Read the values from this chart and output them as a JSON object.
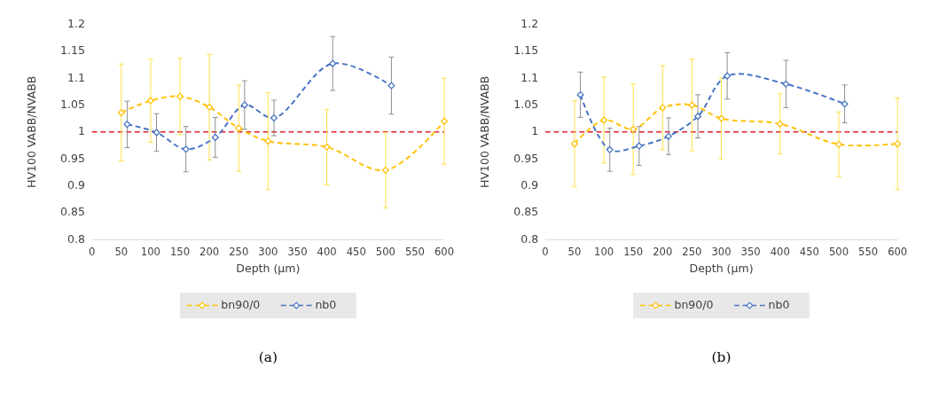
{
  "chart_data": [
    {
      "type": "line",
      "xlabel": "Depth (µm)",
      "ylabel": "HV100 VABB/NVABB",
      "xlim": [
        0,
        600
      ],
      "xticks": [
        0,
        50,
        100,
        150,
        200,
        250,
        300,
        350,
        400,
        450,
        500,
        550,
        600
      ],
      "ylim": [
        0.8,
        1.2
      ],
      "yticks": [
        0.8,
        0.85,
        0.9,
        0.95,
        1,
        1.05,
        1.1,
        1.15,
        1.2
      ],
      "grid": false,
      "legend": "bottom",
      "marker": "diamond",
      "line_style": "dashed",
      "annotations": [
        "(a)"
      ],
      "ref_lines": [
        {
          "axis": "y",
          "value": 1,
          "color": "#e0202a",
          "line_style": "dashed"
        }
      ],
      "series": [
        {
          "name": "bn90/0",
          "color": "#ffc000",
          "x": [
            50,
            100,
            150,
            200,
            250,
            300,
            400,
            500,
            600
          ],
          "values": [
            1.036,
            1.058,
            1.066,
            1.046,
            1.007,
            0.983,
            0.972,
            0.929,
            1.02
          ],
          "errors": [
            0.09,
            0.077,
            0.071,
            0.098,
            0.08,
            0.09,
            0.07,
            0.07,
            0.08
          ]
        },
        {
          "name": "nb0",
          "color": "#4472c4",
          "x": [
            60,
            110,
            160,
            210,
            260,
            310,
            410,
            510
          ],
          "values": [
            1.014,
            0.999,
            0.968,
            0.99,
            1.05,
            1.026,
            1.127,
            1.086
          ],
          "errors": [
            0.043,
            0.035,
            0.042,
            0.037,
            0.045,
            0.033,
            0.05,
            0.053
          ]
        }
      ]
    },
    {
      "type": "line",
      "xlabel": "Depth (µm)",
      "ylabel": "HV100 VABB/NVABB",
      "xlim": [
        0,
        600
      ],
      "xticks": [
        0,
        50,
        100,
        150,
        200,
        250,
        300,
        350,
        400,
        450,
        500,
        550,
        600
      ],
      "ylim": [
        0.8,
        1.2
      ],
      "yticks": [
        0.8,
        0.85,
        0.9,
        0.95,
        1,
        1.05,
        1.1,
        1.15,
        1.2
      ],
      "grid": false,
      "legend": "bottom",
      "marker": "diamond",
      "line_style": "dashed",
      "annotations": [
        "(b)"
      ],
      "ref_lines": [
        {
          "axis": "y",
          "value": 1,
          "color": "#e0202a",
          "line_style": "dashed"
        }
      ],
      "series": [
        {
          "name": "bn90/0",
          "color": "#ffc000",
          "x": [
            50,
            100,
            150,
            200,
            250,
            300,
            400,
            500,
            600
          ],
          "values": [
            0.978,
            1.022,
            1.005,
            1.045,
            1.05,
            1.025,
            1.015,
            0.977,
            0.978
          ],
          "errors": [
            0.08,
            0.08,
            0.084,
            0.078,
            0.085,
            0.075,
            0.056,
            0.06,
            0.085
          ]
        },
        {
          "name": "nb0",
          "color": "#4472c4",
          "x": [
            60,
            110,
            160,
            210,
            260,
            310,
            410,
            510
          ],
          "values": [
            1.069,
            0.967,
            0.974,
            0.992,
            1.029,
            1.104,
            1.089,
            1.052
          ],
          "errors": [
            0.042,
            0.04,
            0.036,
            0.034,
            0.04,
            0.043,
            0.044,
            0.035
          ]
        }
      ]
    }
  ]
}
